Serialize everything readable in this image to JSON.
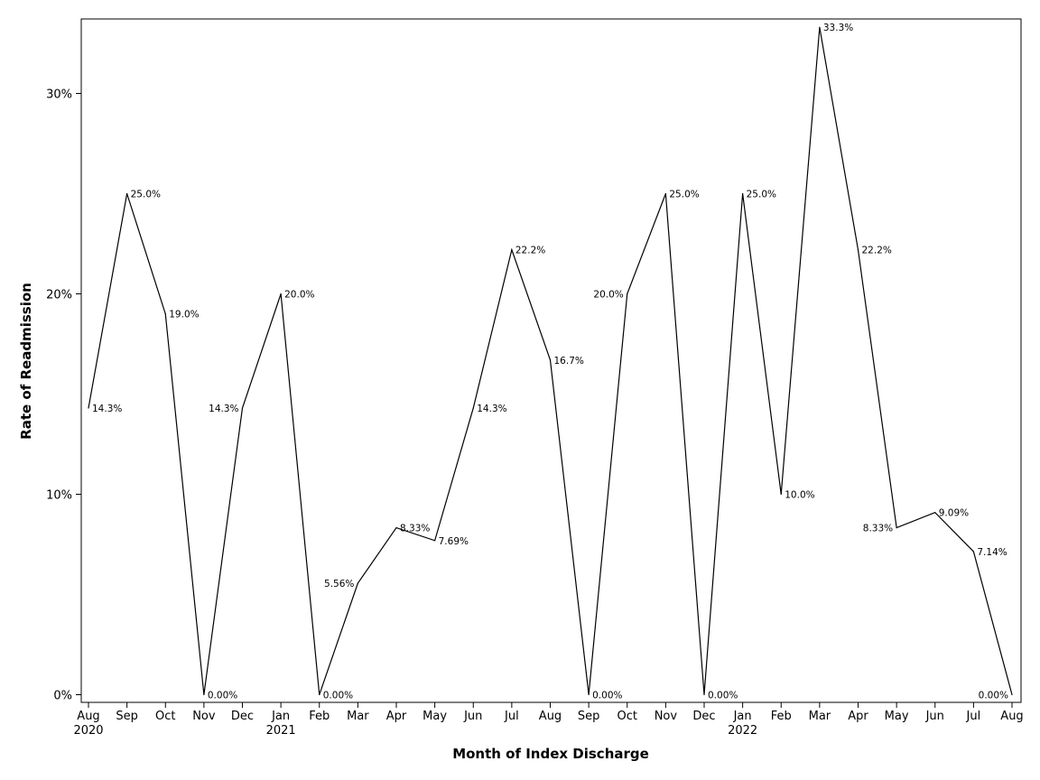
{
  "chart_data": {
    "type": "line",
    "xlabel": "Month of Index Discharge",
    "ylabel": "Rate of Readmission",
    "ylim": [
      0,
      33.3
    ],
    "y_ticks": [
      {
        "value": 0,
        "label": "0%"
      },
      {
        "value": 10,
        "label": "10%"
      },
      {
        "value": 20,
        "label": "20%"
      },
      {
        "value": 30,
        "label": "30%"
      }
    ],
    "grid": false,
    "legend": "none",
    "line_color": "#000000",
    "x": [
      "Aug 2020",
      "Sep 2020",
      "Oct 2020",
      "Nov 2020",
      "Dec 2020",
      "Jan 2021",
      "Feb 2021",
      "Mar 2021",
      "Apr 2021",
      "May 2021",
      "Jun 2021",
      "Jul 2021",
      "Aug 2021",
      "Sep 2021",
      "Oct 2021",
      "Nov 2021",
      "Dec 2021",
      "Jan 2022",
      "Feb 2022",
      "Mar 2022",
      "Apr 2022",
      "May 2022",
      "Jun 2022",
      "Jul 2022",
      "Aug 2022"
    ],
    "tick_months": [
      "Aug",
      "Sep",
      "Oct",
      "Nov",
      "Dec",
      "Jan",
      "Feb",
      "Mar",
      "Apr",
      "May",
      "Jun",
      "Jul",
      "Aug",
      "Sep",
      "Oct",
      "Nov",
      "Dec",
      "Jan",
      "Feb",
      "Mar",
      "Apr",
      "May",
      "Jun",
      "Jul",
      "Aug"
    ],
    "tick_years": [
      "2020",
      "",
      "",
      "",
      "",
      "2021",
      "",
      "",
      "",
      "",
      "",
      "",
      "",
      "",
      "",
      "",
      "",
      "2022",
      "",
      "",
      "",
      "",
      "",
      "",
      ""
    ],
    "values": [
      14.3,
      25.0,
      19.0,
      0.0,
      14.3,
      20.0,
      0.0,
      5.56,
      8.33,
      7.69,
      14.3,
      22.2,
      16.7,
      0.0,
      20.0,
      25.0,
      0.0,
      25.0,
      10.0,
      33.3,
      22.2,
      8.33,
      9.09,
      7.14,
      0.0
    ],
    "data_labels": [
      "14.3%",
      "25.0%",
      "19.0%",
      "0.00%",
      "14.3%",
      "20.0%",
      "0.00%",
      "5.56%",
      "8.33%",
      "7.69%",
      "14.3%",
      "22.2%",
      "16.7%",
      "0.00%",
      "20.0%",
      "25.0%",
      "0.00%",
      "25.0%",
      "10.0%",
      "33.3%",
      "22.2%",
      "8.33%",
      "9.09%",
      "7.14%",
      "0.00%"
    ],
    "label_side": [
      "right",
      "right",
      "right",
      "right",
      "left",
      "right",
      "right",
      "left",
      "right",
      "right",
      "right",
      "right",
      "right",
      "right",
      "left",
      "right",
      "right",
      "right",
      "right",
      "right",
      "right",
      "left",
      "right",
      "right",
      "left"
    ]
  }
}
